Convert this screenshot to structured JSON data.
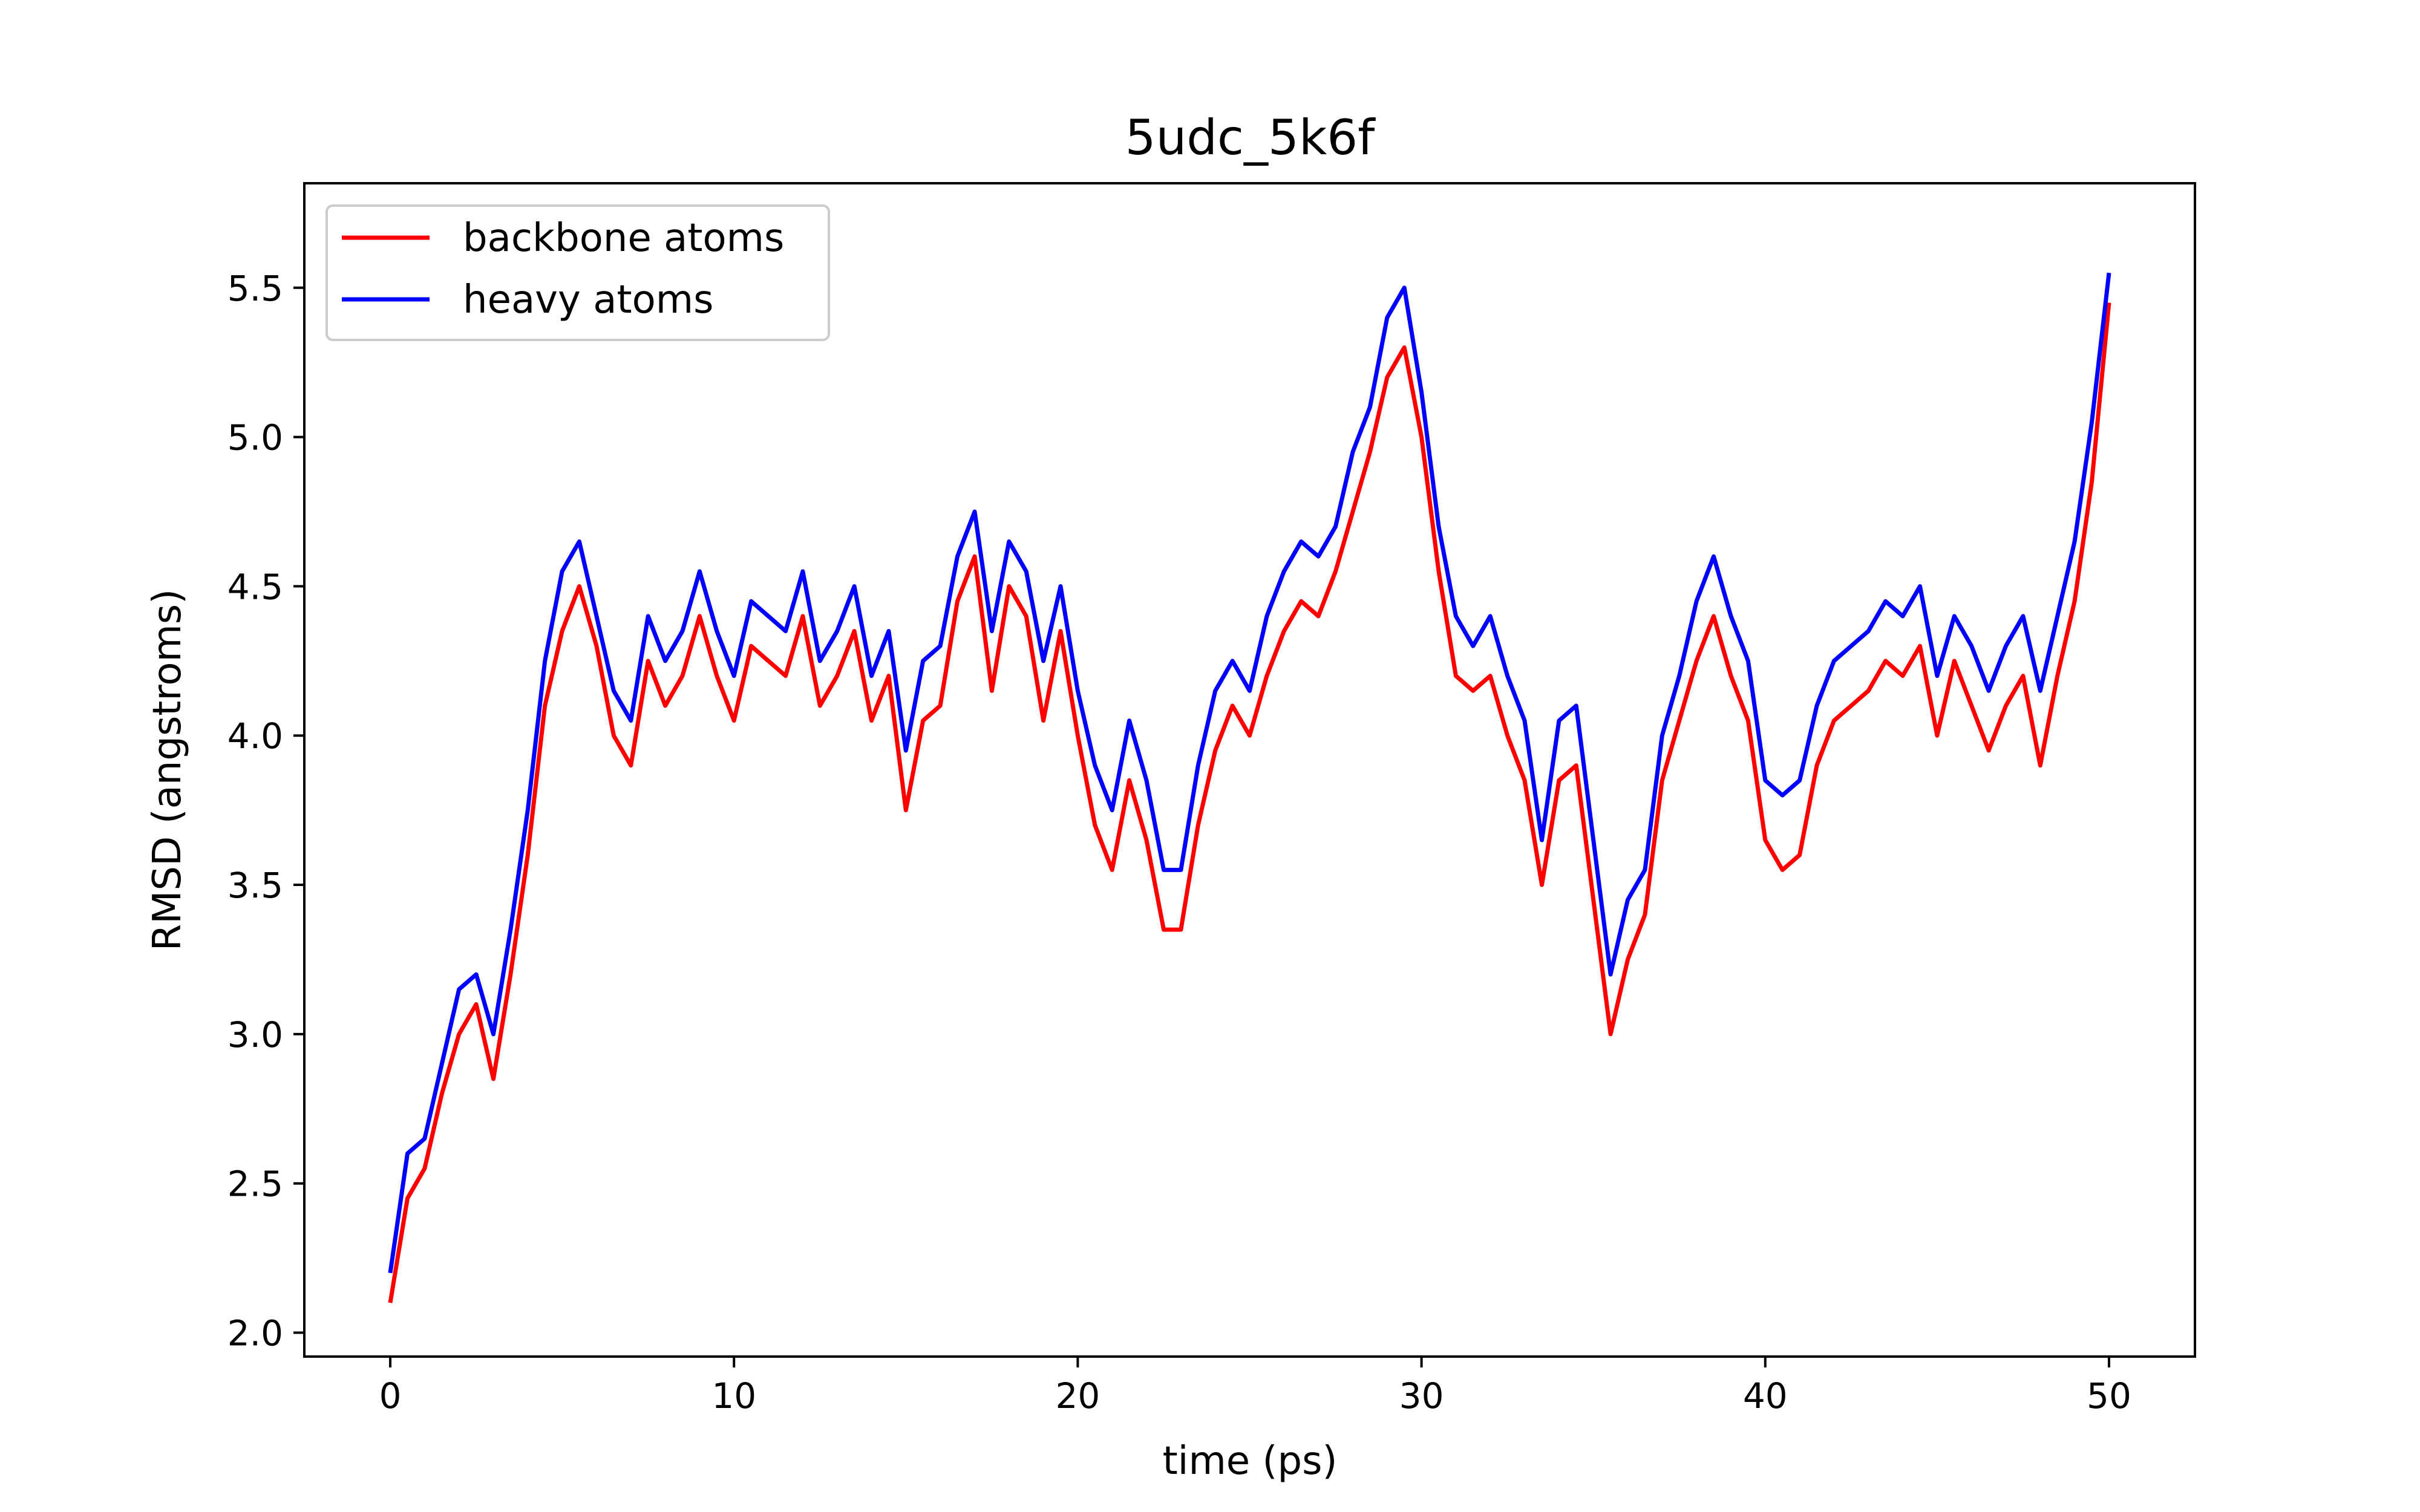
{
  "chart_data": {
    "type": "line",
    "title": "5udc_5k6f",
    "xlabel": "time (ps)",
    "ylabel": "RMSD (angstroms)",
    "xlim": [
      -2.5,
      52.5
    ],
    "ylim": [
      1.92,
      5.85
    ],
    "xticks": [
      "0",
      "10",
      "20",
      "30",
      "40",
      "50"
    ],
    "yticks": [
      "2.0",
      "2.5",
      "3.0",
      "3.5",
      "4.0",
      "4.5",
      "5.0",
      "5.5"
    ],
    "grid": false,
    "legend_position": "upper-left",
    "x": [
      0,
      0.5,
      1,
      1.5,
      2,
      2.5,
      3,
      3.5,
      4,
      4.5,
      5,
      5.5,
      6,
      6.5,
      7,
      7.5,
      8,
      8.5,
      9,
      9.5,
      10,
      10.5,
      11,
      11.5,
      12,
      12.5,
      13,
      13.5,
      14,
      14.5,
      15,
      15.5,
      16,
      16.5,
      17,
      17.5,
      18,
      18.5,
      19,
      19.5,
      20,
      20.5,
      21,
      21.5,
      22,
      22.5,
      23,
      23.5,
      24,
      24.5,
      25,
      25.5,
      26,
      26.5,
      27,
      27.5,
      28,
      28.5,
      29,
      29.5,
      30,
      30.5,
      31,
      31.5,
      32,
      32.5,
      33,
      33.5,
      34,
      34.5,
      35,
      35.5,
      36,
      36.5,
      37,
      37.5,
      38,
      38.5,
      39,
      39.5,
      40,
      40.5,
      41,
      41.5,
      42,
      42.5,
      43,
      43.5,
      44,
      44.5,
      45,
      45.5,
      46,
      46.5,
      47,
      47.5,
      48,
      48.5,
      49,
      49.5,
      50
    ],
    "series": [
      {
        "name": "backbone atoms",
        "color": "#ff0000",
        "values": [
          2.1,
          2.45,
          2.55,
          2.8,
          3.0,
          3.1,
          2.85,
          3.2,
          3.6,
          4.1,
          4.35,
          4.5,
          4.3,
          4.0,
          3.9,
          4.25,
          4.1,
          4.2,
          4.4,
          4.2,
          4.05,
          4.3,
          4.25,
          4.2,
          4.4,
          4.1,
          4.2,
          4.35,
          4.05,
          4.2,
          3.75,
          4.05,
          4.1,
          4.45,
          4.6,
          4.15,
          4.5,
          4.4,
          4.05,
          4.35,
          4.0,
          3.7,
          3.55,
          3.85,
          3.65,
          3.35,
          3.35,
          3.7,
          3.95,
          4.1,
          4.0,
          4.2,
          4.35,
          4.45,
          4.4,
          4.55,
          4.75,
          4.95,
          5.2,
          5.3,
          5.0,
          4.55,
          4.2,
          4.15,
          4.2,
          4.0,
          3.85,
          3.5,
          3.85,
          3.9,
          3.45,
          3.0,
          3.25,
          3.4,
          3.85,
          4.05,
          4.25,
          4.4,
          4.2,
          4.05,
          3.65,
          3.55,
          3.6,
          3.9,
          4.05,
          4.1,
          4.15,
          4.25,
          4.2,
          4.3,
          4.0,
          4.25,
          4.1,
          3.95,
          4.1,
          4.2,
          3.9,
          4.2,
          4.45,
          4.85,
          5.45
        ]
      },
      {
        "name": "heavy atoms",
        "color": "#0000ff",
        "values": [
          2.2,
          2.6,
          2.65,
          2.9,
          3.15,
          3.2,
          3.0,
          3.35,
          3.75,
          4.25,
          4.55,
          4.65,
          4.4,
          4.15,
          4.05,
          4.4,
          4.25,
          4.35,
          4.55,
          4.35,
          4.2,
          4.45,
          4.4,
          4.35,
          4.55,
          4.25,
          4.35,
          4.5,
          4.2,
          4.35,
          3.95,
          4.25,
          4.3,
          4.6,
          4.75,
          4.35,
          4.65,
          4.55,
          4.25,
          4.5,
          4.15,
          3.9,
          3.75,
          4.05,
          3.85,
          3.55,
          3.55,
          3.9,
          4.15,
          4.25,
          4.15,
          4.4,
          4.55,
          4.65,
          4.6,
          4.7,
          4.95,
          5.1,
          5.4,
          5.5,
          5.15,
          4.7,
          4.4,
          4.3,
          4.4,
          4.2,
          4.05,
          3.65,
          4.05,
          4.1,
          3.65,
          3.2,
          3.45,
          3.55,
          4.0,
          4.2,
          4.45,
          4.6,
          4.4,
          4.25,
          3.85,
          3.8,
          3.85,
          4.1,
          4.25,
          4.3,
          4.35,
          4.45,
          4.4,
          4.5,
          4.2,
          4.4,
          4.3,
          4.15,
          4.3,
          4.4,
          4.15,
          4.4,
          4.65,
          5.05,
          5.55
        ]
      }
    ]
  }
}
